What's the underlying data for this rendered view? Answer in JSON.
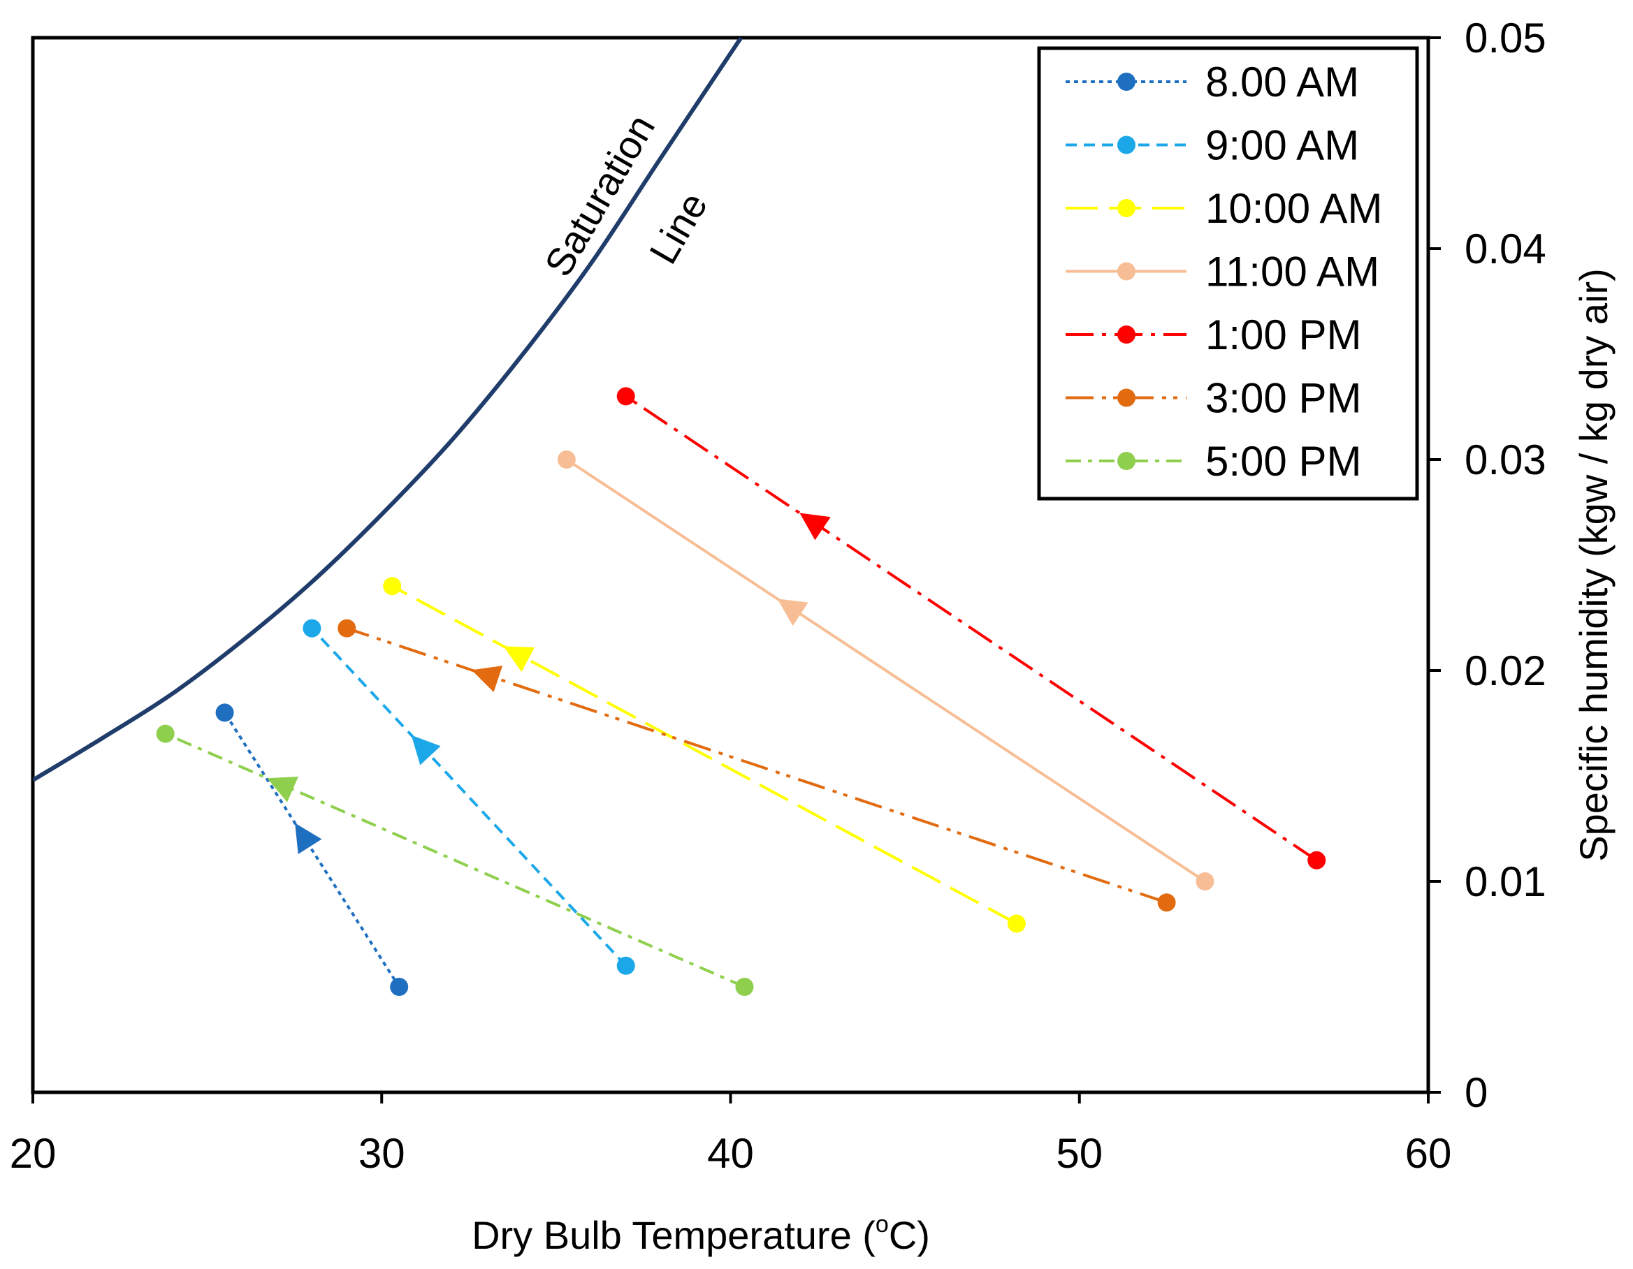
{
  "chart_data": {
    "type": "line",
    "title": "",
    "xlabel": "Dry Bulb Temperature (",
    "xlabel_sup": "o",
    "xlabel_end": "C)",
    "ylabel": "Specific humidity (kgw / kg dry air)",
    "xlim": [
      20,
      60
    ],
    "ylim": [
      0,
      0.05
    ],
    "xticks": [
      20,
      30,
      40,
      50,
      60
    ],
    "xtick_labels": [
      "20",
      "30",
      "40",
      "50",
      "60"
    ],
    "yticks": [
      0,
      0.01,
      0.02,
      0.03,
      0.04,
      0.05
    ],
    "ytick_labels": [
      "0",
      "0.01",
      "0.02",
      "0.03",
      "0.04",
      "0.05"
    ],
    "y_axis_side": "right",
    "grid": false,
    "legend_position": "top-right",
    "saturation_line": {
      "label_line1": "Saturation",
      "label_line2": "Line",
      "color": "#1f3c6b",
      "x": [
        20,
        22,
        24,
        26,
        28,
        30,
        32,
        34,
        36,
        38,
        40.3
      ],
      "y": [
        0.0148,
        0.0168,
        0.0189,
        0.0214,
        0.0242,
        0.0274,
        0.0309,
        0.0349,
        0.0393,
        0.0443,
        0.05
      ]
    },
    "series": [
      {
        "name": "8.00 AM",
        "color": "#1f6fc0",
        "dash": "6,6",
        "x": [
          30.5,
          25.5
        ],
        "y": [
          0.005,
          0.018
        ],
        "arrow_t": 0.55
      },
      {
        "name": "9:00 AM",
        "color": "#1ca8e8",
        "dash": "16,10",
        "x": [
          37.0,
          28.0
        ],
        "y": [
          0.006,
          0.022
        ],
        "arrow_t": 0.65
      },
      {
        "name": "10:00 AM",
        "color": "#ffff00",
        "dash": "46,16",
        "x": [
          48.2,
          30.3
        ],
        "y": [
          0.008,
          0.024
        ],
        "arrow_t": 0.8
      },
      {
        "name": "11:00 AM",
        "color": "#f7be95",
        "dash": "",
        "x": [
          53.6,
          35.3
        ],
        "y": [
          0.01,
          0.03
        ],
        "arrow_t": 0.65
      },
      {
        "name": "1:00 PM",
        "color": "#ff0000",
        "dash": "40,12,6,12",
        "x": [
          56.8,
          37.0
        ],
        "y": [
          0.011,
          0.033
        ],
        "arrow_t": 0.73
      },
      {
        "name": "3:00 PM",
        "color": "#e26b10",
        "dash": "40,12,6,10,6,12",
        "x": [
          52.5,
          29.0
        ],
        "y": [
          0.009,
          0.022
        ],
        "arrow_t": 0.83
      },
      {
        "name": "5:00 PM",
        "color": "#8fcf4e",
        "dash": "22,10,6,10",
        "x": [
          40.4,
          23.8
        ],
        "y": [
          0.005,
          0.017
        ],
        "arrow_t": 0.8
      }
    ]
  }
}
